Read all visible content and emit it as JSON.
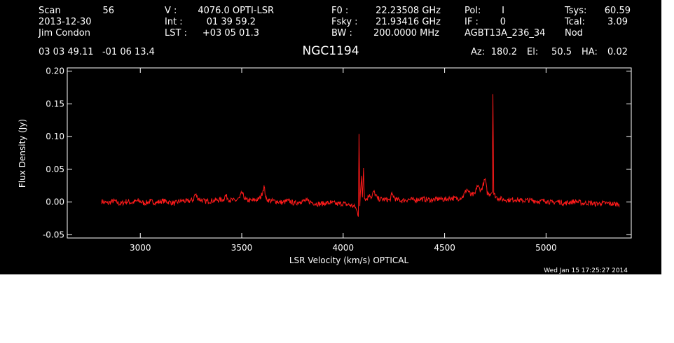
{
  "header": {
    "col1": {
      "scan_label": "Scan",
      "scan_value": "56",
      "date": "2013-12-30",
      "observer": "Jim Condon"
    },
    "col2": {
      "v_label": "V   :",
      "v_value": "4076.0 OPTI-LSR",
      "int_label": "Int  :",
      "int_value": "01 39 59.2",
      "lst_label": "LST :",
      "lst_value": "+03 05 01.3"
    },
    "col3": {
      "f0_label": "F0    :",
      "f0_value": "22.23508 GHz",
      "fsky_label": "Fsky :",
      "fsky_value": "21.93416 GHz",
      "bw_label": "BW    :",
      "bw_value": "200.0000 MHz"
    },
    "col4": {
      "pol_label": "Pol:",
      "pol_value": "I",
      "if_label": "IF :",
      "if_value": "0",
      "project": "AGBT13A_236_34"
    },
    "col5": {
      "tsys_label": "Tsys:",
      "tsys_value": "60.59",
      "tcal_label": "Tcal:",
      "tcal_value": "3.09",
      "mode": "Nod"
    },
    "coords": "03 03 49.11   -01 06 13.4",
    "source": "NGC1194",
    "az_label": "Az:",
    "az_value": "180.2",
    "el_label": "El:",
    "el_value": "50.5",
    "ha_label": "HA:",
    "ha_value": "0.02",
    "timestamp": "Wed Jan 15 17:25:27 2014"
  },
  "colors": {
    "background": "#000000",
    "foreground": "#ffffff",
    "series": "#ff1a1a"
  },
  "chart_data": {
    "type": "line",
    "title": "NGC1194",
    "xlabel": "LSR Velocity (km/s) OPTICAL",
    "ylabel": "Flux Density (Jy)",
    "xlim": [
      2640,
      5420
    ],
    "ylim": [
      -0.055,
      0.205
    ],
    "xticks": [
      3000,
      3500,
      4000,
      4500,
      5000
    ],
    "yticks": [
      -0.05,
      0.0,
      0.05,
      0.1,
      0.15,
      0.2
    ],
    "xtick_labels": [
      "3000",
      "3500",
      "4000",
      "4500",
      "5000"
    ],
    "ytick_labels": [
      "-0.05",
      "0.00",
      "0.05",
      "0.10",
      "0.15",
      "0.20"
    ],
    "grid": false,
    "legend": "none",
    "series": [
      {
        "x": [
          2810,
          2840,
          2870,
          2900,
          2930,
          2960,
          2990,
          3020,
          3050,
          3080,
          3110,
          3140,
          3170,
          3200,
          3230,
          3260,
          3270,
          3290,
          3320,
          3350,
          3380,
          3410,
          3420,
          3440,
          3470,
          3490,
          3500,
          3520,
          3550,
          3580,
          3595,
          3610,
          3620,
          3640,
          3670,
          3700,
          3730,
          3760,
          3790,
          3820,
          3850,
          3880,
          3910,
          3940,
          3970,
          4000,
          4020,
          4040,
          4060,
          4075,
          4078,
          4082,
          4090,
          4095,
          4100,
          4105,
          4115,
          4130,
          4140,
          4150,
          4170,
          4200,
          4230,
          4240,
          4260,
          4290,
          4320,
          4350,
          4380,
          4410,
          4440,
          4470,
          4500,
          4530,
          4560,
          4590,
          4610,
          4630,
          4650,
          4660,
          4680,
          4700,
          4710,
          4720,
          4735,
          4738,
          4742,
          4760,
          4790,
          4820,
          4850,
          4880,
          4910,
          4940,
          4970,
          5000,
          5030,
          5060,
          5090,
          5120,
          5150,
          5180,
          5210,
          5240,
          5270,
          5300,
          5330,
          5360
        ],
        "y": [
          0.001,
          -0.002,
          0.002,
          -0.003,
          0.001,
          -0.001,
          0.002,
          -0.002,
          0.001,
          -0.001,
          0.002,
          0.0,
          -0.002,
          0.002,
          0.001,
          0.003,
          0.012,
          0.004,
          0.001,
          0.002,
          0.003,
          0.004,
          0.01,
          0.003,
          0.002,
          0.006,
          0.014,
          0.003,
          0.002,
          0.004,
          0.008,
          0.024,
          0.005,
          0.002,
          0.001,
          -0.001,
          0.002,
          -0.002,
          0.001,
          0.002,
          -0.001,
          -0.003,
          -0.002,
          -0.001,
          -0.003,
          -0.002,
          -0.004,
          -0.005,
          -0.008,
          -0.02,
          0.104,
          -0.006,
          0.04,
          0.008,
          0.052,
          0.006,
          0.004,
          0.012,
          0.006,
          0.016,
          0.005,
          0.004,
          0.003,
          0.012,
          0.004,
          0.002,
          0.004,
          0.003,
          0.005,
          0.004,
          0.003,
          0.005,
          0.004,
          0.006,
          0.005,
          0.008,
          0.02,
          0.01,
          0.012,
          0.025,
          0.018,
          0.035,
          0.014,
          0.012,
          0.016,
          0.165,
          0.012,
          0.006,
          0.004,
          0.003,
          0.004,
          0.002,
          0.003,
          0.002,
          0.001,
          0.002,
          -0.001,
          0.001,
          -0.002,
          0.0,
          0.001,
          -0.002,
          -0.001,
          -0.003,
          -0.002,
          -0.002,
          -0.003,
          -0.003
        ]
      }
    ]
  }
}
